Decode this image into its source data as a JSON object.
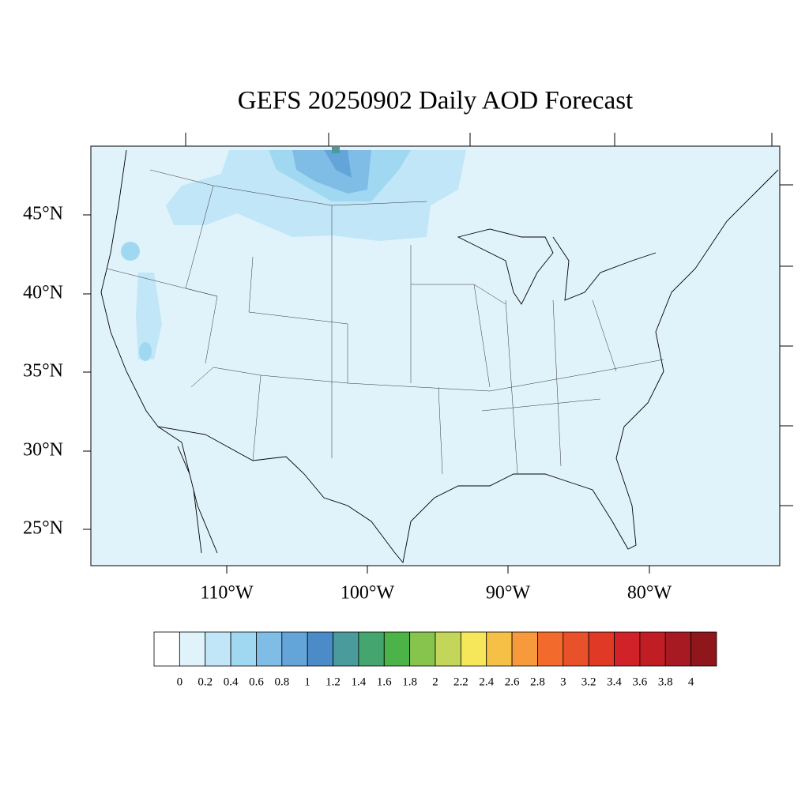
{
  "title": "GEFS 20250902 Daily AOD Forecast",
  "lat_labels": [
    "45°N",
    "40°N",
    "35°N",
    "30°N",
    "25°N"
  ],
  "lon_labels": [
    "110°W",
    "100°W",
    "90°W",
    "80°W"
  ],
  "colorbar": {
    "colors": [
      "#ffffff",
      "#e0f3fb",
      "#c0e6f8",
      "#a0d8f2",
      "#80bde6",
      "#64a5d9",
      "#4a8bc8",
      "#4a9b9c",
      "#45a56f",
      "#4bb347",
      "#86c44d",
      "#c3d659",
      "#f5e65a",
      "#f6c047",
      "#f69a3c",
      "#f26b2d",
      "#e9512b",
      "#e03a27",
      "#d1222a",
      "#c01d25",
      "#a81a22",
      "#8f161b"
    ],
    "labels": [
      "0",
      "0.2",
      "0.4",
      "0.6",
      "0.8",
      "1",
      "1.2",
      "1.4",
      "1.6",
      "1.8",
      "2",
      "2.2",
      "2.4",
      "2.6",
      "2.8",
      "3",
      "3.2",
      "3.4",
      "3.6",
      "3.8",
      "4"
    ]
  }
}
